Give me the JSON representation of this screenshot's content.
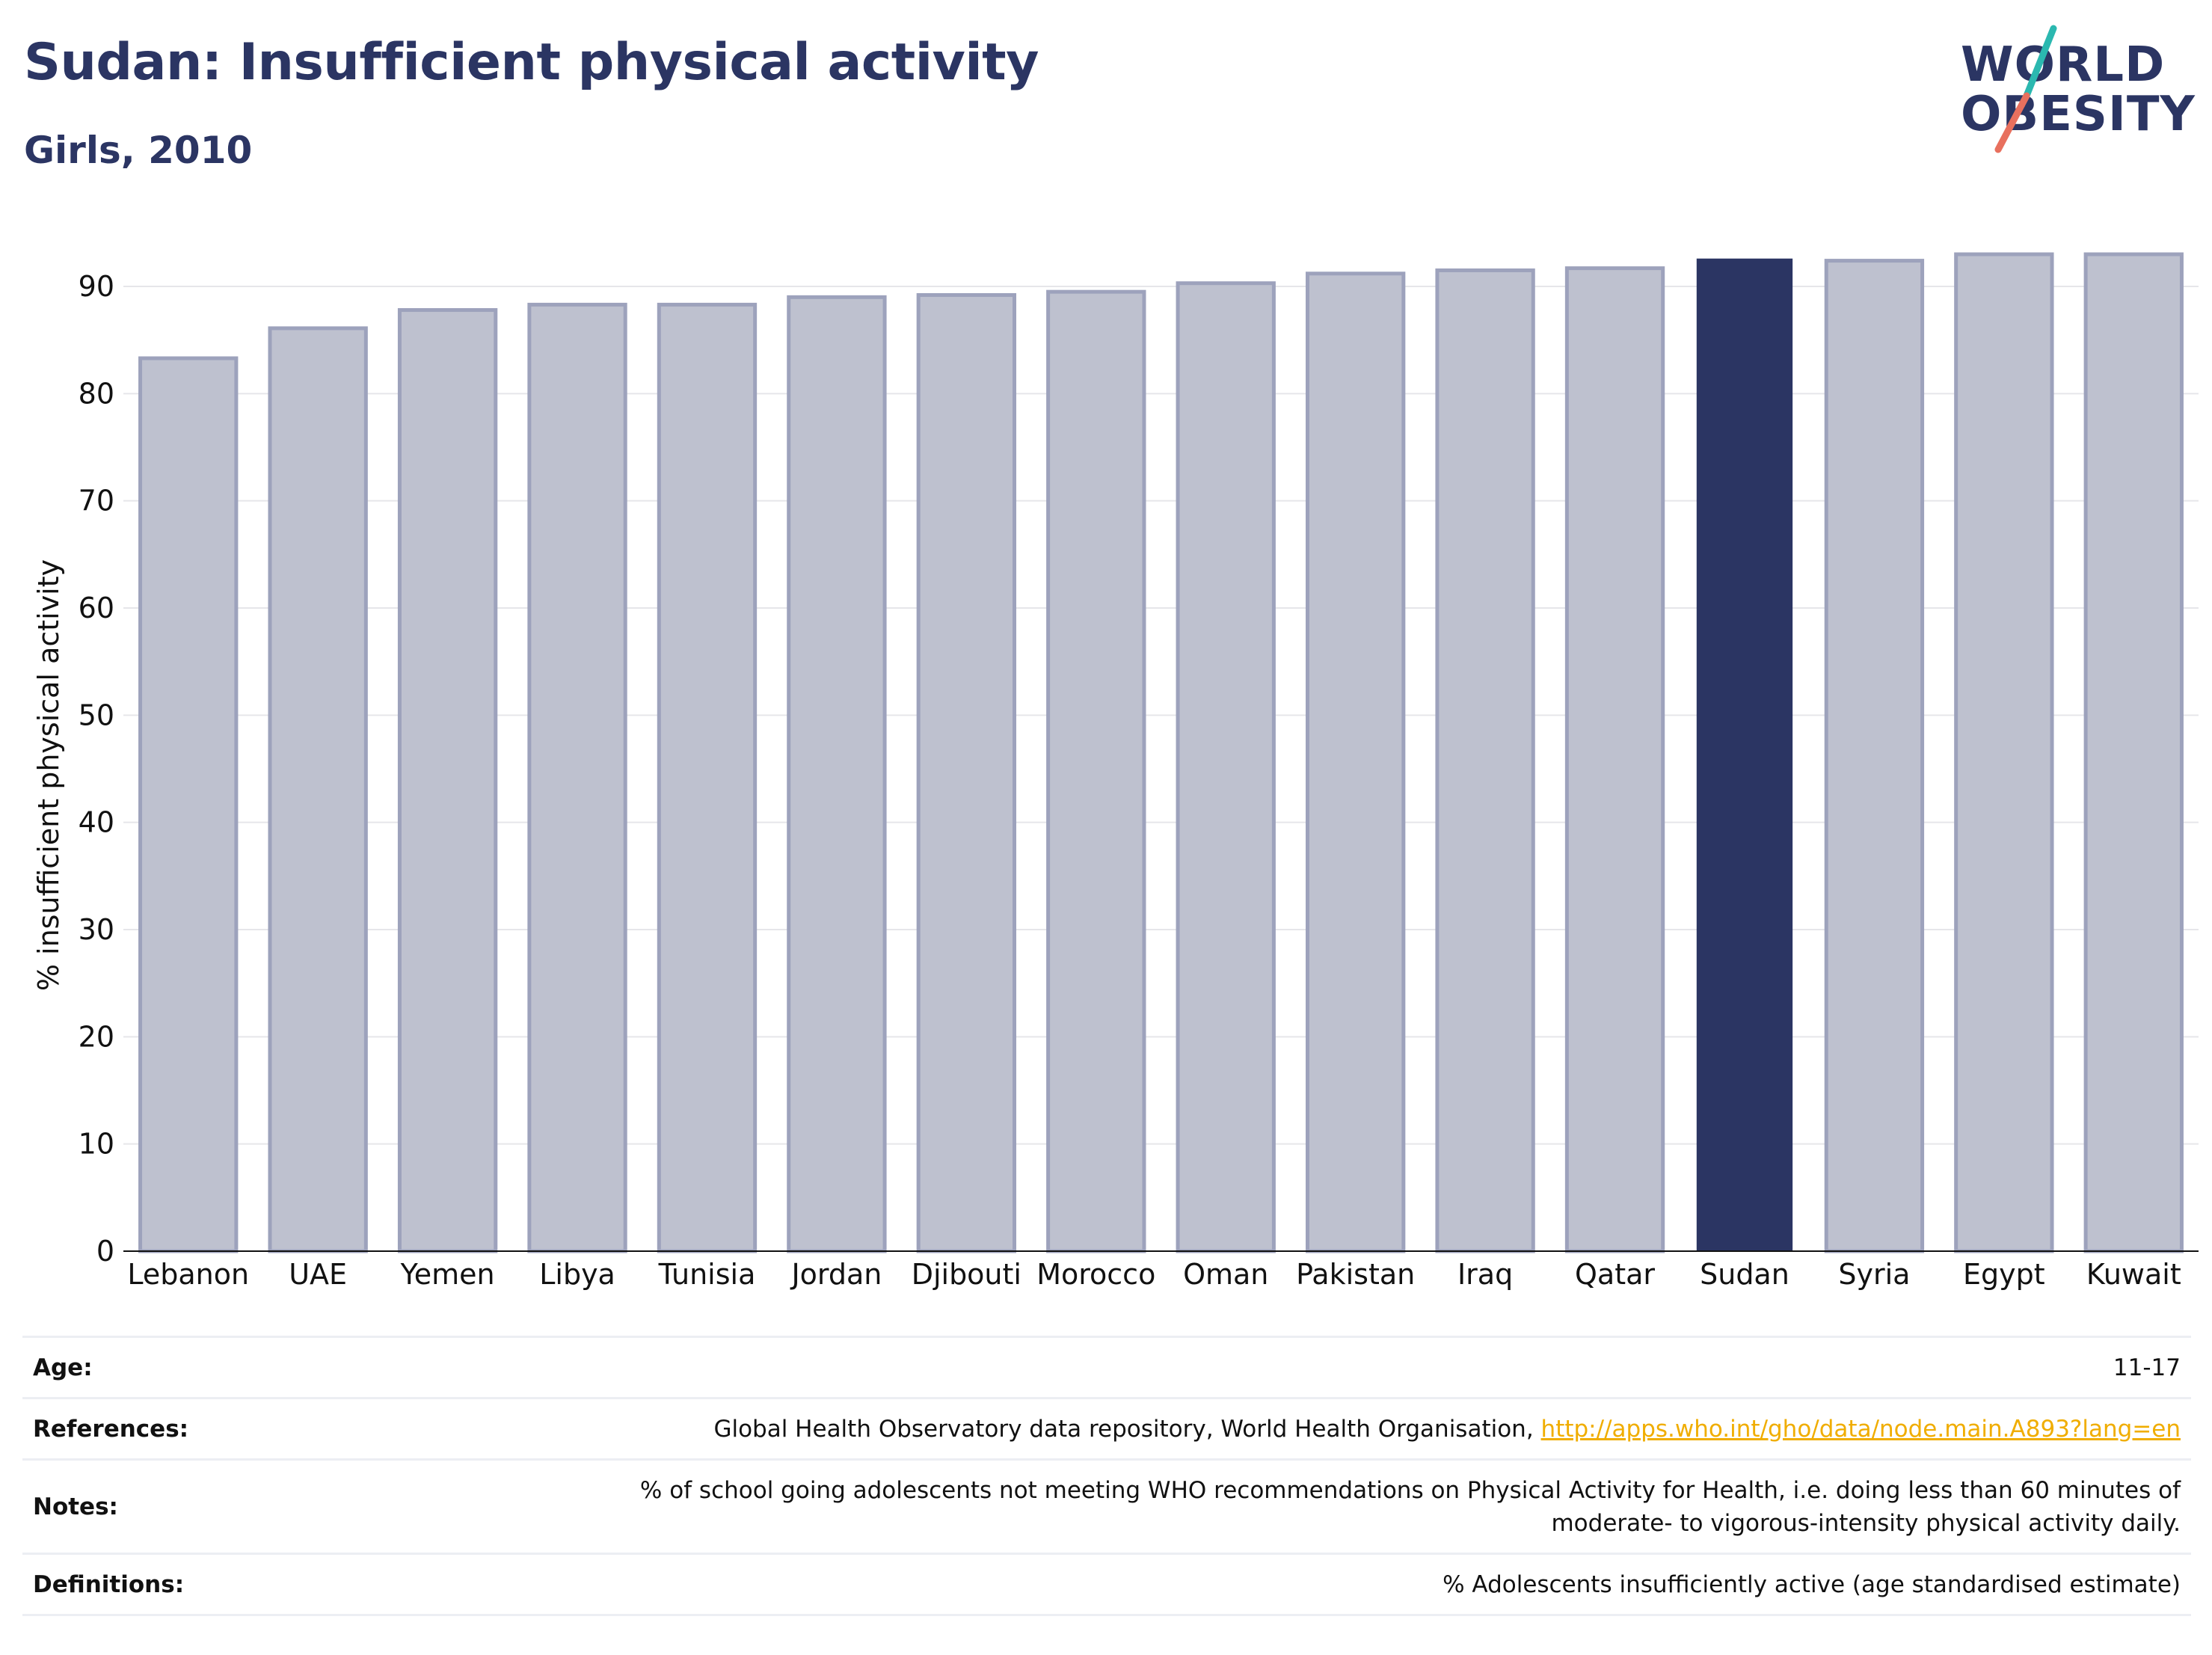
{
  "header": {
    "title": "Sudan: Insufficient physical activity",
    "subtitle": "Girls, 2010"
  },
  "logo": {
    "line1": "WORLD",
    "line2": "OBESITY",
    "text_color": "#2b3563",
    "slash_top_color": "#2bb8b0",
    "slash_bottom_color": "#e8705e"
  },
  "colors": {
    "highlight_bar": "#2b3563",
    "other_bar_fill": "#bec1cf",
    "other_bar_stroke": "#9da2bc",
    "grid": "#e6e6ea"
  },
  "chart_data": {
    "type": "bar",
    "title": "Sudan: Insufficient physical activity",
    "subtitle": "Girls, 2010",
    "xlabel": "",
    "ylabel": "% insufficient physical activity",
    "categories": [
      "Lebanon",
      "UAE",
      "Yemen",
      "Libya",
      "Tunisia",
      "Jordan",
      "Djibouti",
      "Morocco",
      "Oman",
      "Pakistan",
      "Iraq",
      "Qatar",
      "Sudan",
      "Syria",
      "Egypt",
      "Kuwait"
    ],
    "values": [
      83.3,
      86.1,
      87.8,
      88.3,
      88.3,
      89.0,
      89.2,
      89.5,
      90.3,
      91.2,
      91.5,
      91.7,
      92.6,
      92.4,
      93.0,
      93.0
    ],
    "highlight": "Sudan",
    "ylim": [
      0,
      93
    ],
    "yticks": [
      0,
      10,
      20,
      30,
      40,
      50,
      60,
      70,
      80,
      90
    ],
    "grid": true,
    "legend": "none"
  },
  "info": {
    "age_label": "Age:",
    "age_value": "11-17",
    "references_label": "References:",
    "references_text": "Global Health Observatory data repository, World Health Organisation, ",
    "references_link": "http://apps.who.int/gho/data/node.main.A893?lang=en",
    "notes_label": "Notes:",
    "notes_line1": "% of school going adolescents not meeting WHO recommendations on Physical Activity for Health, i.e. doing less than 60 minutes of",
    "notes_line2": "moderate- to vigorous-intensity physical activity daily.",
    "definitions_label": "Definitions:",
    "definitions_value": "% Adolescents insufficiently active (age standardised estimate)"
  }
}
